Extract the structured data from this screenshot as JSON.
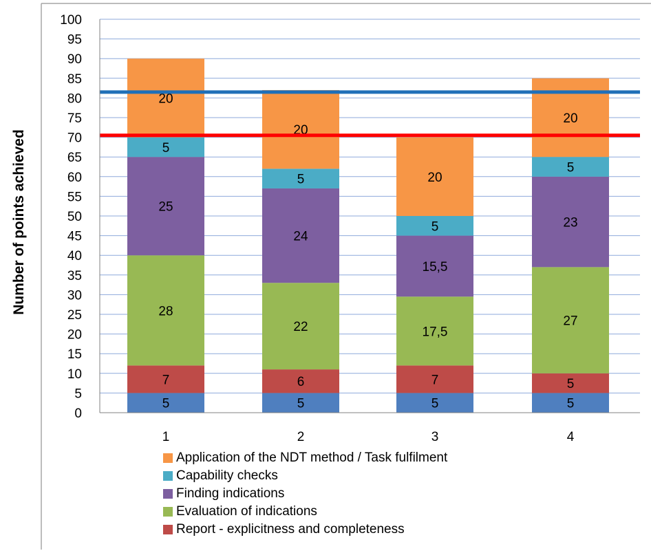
{
  "chart_data": {
    "type": "bar",
    "stacked": true,
    "categories": [
      "1",
      "2",
      "3",
      "4"
    ],
    "ylabel": "Number of points achieved",
    "ylim": [
      0,
      100
    ],
    "ytick_step": 5,
    "grid": true,
    "legend_position": "bottom",
    "series": [
      {
        "name": "Report - explicitness and completeness",
        "key": "base",
        "color": "#4F7FBF",
        "values": [
          5,
          5,
          5,
          5
        ],
        "labels": [
          "5",
          "5",
          "5",
          "5"
        ],
        "show_in_legend": false
      },
      {
        "name": "Report - explicitness and completeness",
        "color": "#BE4B48",
        "values": [
          7,
          6,
          7,
          5
        ],
        "labels": [
          "7",
          "6",
          "7",
          "5"
        ]
      },
      {
        "name": "Evaluation of indications",
        "color": "#98B954",
        "values": [
          28,
          22,
          17.5,
          27
        ],
        "labels": [
          "28",
          "22",
          "17,5",
          "27"
        ]
      },
      {
        "name": "Finding indications",
        "color": "#7D5FA0",
        "values": [
          25,
          24,
          15.5,
          23
        ],
        "labels": [
          "25",
          "24",
          "15,5",
          "23"
        ]
      },
      {
        "name": "Capability checks",
        "color": "#4BACC6",
        "values": [
          5,
          5,
          5,
          5
        ],
        "labels": [
          "5",
          "5",
          "5",
          "5"
        ]
      },
      {
        "name": "Application of the NDT method / Task fulfilment",
        "color": "#F79646",
        "values": [
          20,
          20,
          20,
          20
        ],
        "labels": [
          "20",
          "20",
          "20",
          "20"
        ]
      }
    ],
    "reference_lines": [
      {
        "value": 81.5,
        "color": "#1F6FB8"
      },
      {
        "value": 70.5,
        "color": "#FF0000"
      }
    ]
  },
  "legend_items": [
    {
      "label": "Application of the NDT method / Task fulfilment",
      "color": "#F79646"
    },
    {
      "label": "Capability checks",
      "color": "#4BACC6"
    },
    {
      "label": "Finding indications",
      "color": "#7D5FA0"
    },
    {
      "label": "Evaluation of indications",
      "color": "#98B954"
    },
    {
      "label": "Report - explicitness and completeness",
      "color": "#BE4B48"
    }
  ]
}
